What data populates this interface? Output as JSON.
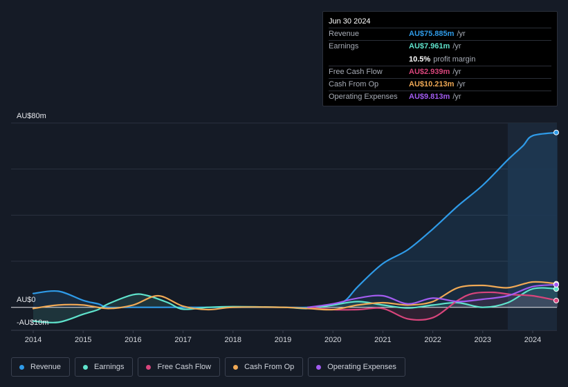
{
  "tooltip": {
    "date": "Jun 30 2024",
    "rows": [
      {
        "label": "Revenue",
        "value": "AU$75.885m",
        "unit": "/yr",
        "color": "#2f9be8"
      },
      {
        "label": "Earnings",
        "value": "AU$7.961m",
        "unit": "/yr",
        "color": "#5fe3cc"
      },
      {
        "label": "",
        "value": "10.5%",
        "unit": "profit margin",
        "color": "#ffffff"
      },
      {
        "label": "Free Cash Flow",
        "value": "AU$2.939m",
        "unit": "/yr",
        "color": "#d9457c"
      },
      {
        "label": "Cash From Op",
        "value": "AU$10.213m",
        "unit": "/yr",
        "color": "#f0a955"
      },
      {
        "label": "Operating Expenses",
        "value": "AU$9.813m",
        "unit": "/yr",
        "color": "#a25cf0"
      }
    ]
  },
  "legend": [
    {
      "label": "Revenue",
      "color": "#2f9be8"
    },
    {
      "label": "Earnings",
      "color": "#5fe3cc"
    },
    {
      "label": "Free Cash Flow",
      "color": "#d9457c"
    },
    {
      "label": "Cash From Op",
      "color": "#f0a955"
    },
    {
      "label": "Operating Expenses",
      "color": "#a25cf0"
    }
  ],
  "chart_data": {
    "type": "line",
    "y_labels": {
      "top": "AU$80m",
      "zero": "AU$0",
      "bottom": "-AU$10m"
    },
    "ylim": [
      -10,
      80
    ],
    "xlim": [
      2013.8,
      2024.5
    ],
    "x_ticks": [
      "2014",
      "2015",
      "2016",
      "2017",
      "2018",
      "2019",
      "2020",
      "2021",
      "2022",
      "2023",
      "2024"
    ],
    "highlight_from": 2023.5,
    "series": [
      {
        "name": "Revenue",
        "color": "#2f9be8",
        "fill": true,
        "points": [
          [
            2014.0,
            6.0
          ],
          [
            2014.5,
            7.0
          ],
          [
            2015.0,
            3.0
          ],
          [
            2015.3,
            1.5
          ],
          [
            2015.5,
            0.0
          ],
          [
            2016.0,
            0.0
          ],
          [
            2017.0,
            0.0
          ],
          [
            2018.0,
            0.0
          ],
          [
            2019.0,
            0.0
          ],
          [
            2019.5,
            0.0
          ],
          [
            2020.0,
            1.0
          ],
          [
            2020.25,
            3.0
          ],
          [
            2020.5,
            9.0
          ],
          [
            2021.0,
            19.0
          ],
          [
            2021.5,
            25.0
          ],
          [
            2022.0,
            34.0
          ],
          [
            2022.5,
            44.0
          ],
          [
            2023.0,
            53.0
          ],
          [
            2023.5,
            64.0
          ],
          [
            2023.8,
            70.0
          ],
          [
            2024.0,
            74.5
          ],
          [
            2024.5,
            75.885
          ]
        ]
      },
      {
        "name": "Earnings",
        "color": "#5fe3cc",
        "fill": true,
        "points": [
          [
            2014.0,
            -6.0
          ],
          [
            2014.5,
            -6.5
          ],
          [
            2015.0,
            -3.0
          ],
          [
            2015.3,
            -1.0
          ],
          [
            2015.5,
            1.5
          ],
          [
            2016.0,
            5.5
          ],
          [
            2016.3,
            5.0
          ],
          [
            2016.7,
            2.0
          ],
          [
            2017.0,
            -0.8
          ],
          [
            2017.5,
            0.0
          ],
          [
            2018.0,
            0.3
          ],
          [
            2019.0,
            0.0
          ],
          [
            2019.5,
            -0.5
          ],
          [
            2020.0,
            1.0
          ],
          [
            2020.5,
            2.5
          ],
          [
            2021.0,
            1.0
          ],
          [
            2021.5,
            -0.3
          ],
          [
            2022.0,
            1.0
          ],
          [
            2022.5,
            2.0
          ],
          [
            2023.0,
            0.0
          ],
          [
            2023.5,
            2.0
          ],
          [
            2024.0,
            8.0
          ],
          [
            2024.5,
            7.961
          ]
        ]
      },
      {
        "name": "Free Cash Flow",
        "color": "#d9457c",
        "fill": true,
        "points": [
          [
            2019.5,
            0.0
          ],
          [
            2020.0,
            -1.0
          ],
          [
            2020.5,
            -1.0
          ],
          [
            2021.0,
            -0.5
          ],
          [
            2021.5,
            -5.0
          ],
          [
            2022.0,
            -4.5
          ],
          [
            2022.5,
            3.0
          ],
          [
            2022.8,
            6.0
          ],
          [
            2023.2,
            6.5
          ],
          [
            2023.6,
            5.5
          ],
          [
            2024.0,
            5.0
          ],
          [
            2024.5,
            2.939
          ]
        ]
      },
      {
        "name": "Cash From Op",
        "color": "#f0a955",
        "fill": false,
        "points": [
          [
            2014.0,
            -0.5
          ],
          [
            2014.5,
            1.0
          ],
          [
            2015.0,
            1.0
          ],
          [
            2015.5,
            -0.5
          ],
          [
            2016.0,
            1.0
          ],
          [
            2016.5,
            5.0
          ],
          [
            2017.0,
            0.5
          ],
          [
            2017.5,
            -1.0
          ],
          [
            2018.0,
            0.0
          ],
          [
            2019.0,
            0.0
          ],
          [
            2019.5,
            -0.5
          ],
          [
            2020.0,
            -1.0
          ],
          [
            2020.5,
            1.0
          ],
          [
            2021.0,
            2.0
          ],
          [
            2021.5,
            1.0
          ],
          [
            2022.0,
            2.5
          ],
          [
            2022.5,
            8.5
          ],
          [
            2023.0,
            9.5
          ],
          [
            2023.5,
            8.5
          ],
          [
            2024.0,
            11.0
          ],
          [
            2024.5,
            10.213
          ]
        ]
      },
      {
        "name": "Operating Expenses",
        "color": "#a25cf0",
        "fill": false,
        "points": [
          [
            2019.5,
            0.0
          ],
          [
            2020.0,
            1.5
          ],
          [
            2020.5,
            4.0
          ],
          [
            2021.0,
            5.0
          ],
          [
            2021.5,
            1.5
          ],
          [
            2022.0,
            4.0
          ],
          [
            2022.5,
            2.5
          ],
          [
            2023.0,
            3.5
          ],
          [
            2023.5,
            5.0
          ],
          [
            2024.0,
            9.0
          ],
          [
            2024.5,
            9.813
          ]
        ]
      }
    ]
  }
}
